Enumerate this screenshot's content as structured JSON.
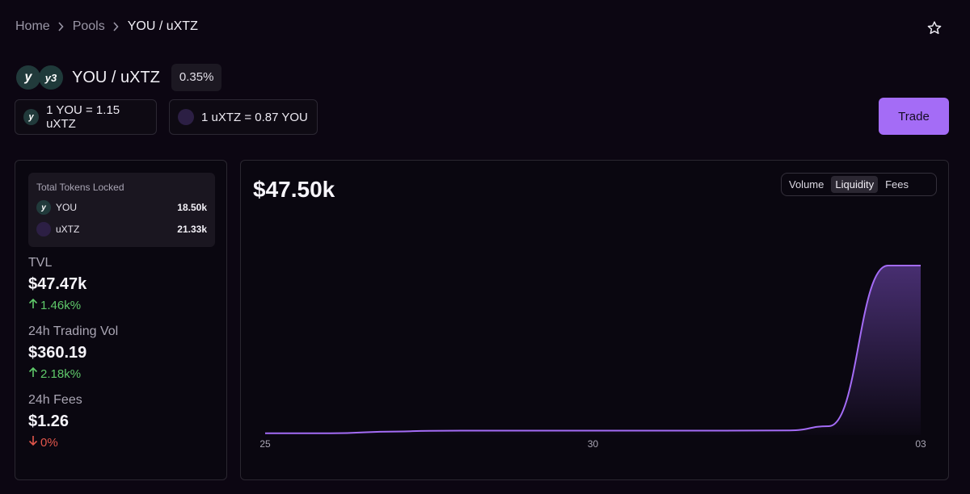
{
  "breadcrumb": {
    "home": "Home",
    "pools": "Pools",
    "current": "YOU / uXTZ"
  },
  "pair": {
    "title": "YOU / uXTZ",
    "fee": "0.35%",
    "logo1": "y",
    "logo2": "y3"
  },
  "rates": {
    "rate1": "1 YOU = 1.15 uXTZ",
    "rate2": "1 uXTZ = 0.87 YOU"
  },
  "trade_label": "Trade",
  "locked": {
    "title": "Total Tokens Locked",
    "tokens": [
      {
        "symbol": "YOU",
        "amount": "18.50k"
      },
      {
        "symbol": "uXTZ",
        "amount": "21.33k"
      }
    ]
  },
  "stats": {
    "tvl": {
      "label": "TVL",
      "value": "$47.47k",
      "change": "1.46k%",
      "direction": "up"
    },
    "volume": {
      "label": "24h Trading Vol",
      "value": "$360.19",
      "change": "2.18k%",
      "direction": "up"
    },
    "fees": {
      "label": "24h Fees",
      "value": "$1.26",
      "change": "0%",
      "direction": "down"
    }
  },
  "chart_header": {
    "value": "$47.50k"
  },
  "tabs": [
    "Volume",
    "Liquidity",
    "Fees"
  ],
  "active_tab": "Liquidity",
  "icons": {
    "star": "star-icon",
    "chevron": "chevron-right-icon",
    "up": "arrow-up-icon",
    "down": "arrow-down-icon"
  },
  "colors": {
    "accent": "#a46cf6",
    "positive": "#5fc96a",
    "negative": "#e2564b",
    "background": "#0c0612"
  },
  "chart_data": {
    "type": "area",
    "x_tick_labels": [
      "25",
      "30",
      "03"
    ],
    "x": [
      0,
      1,
      2,
      2.5,
      3,
      4,
      5,
      6,
      7,
      8,
      8.6,
      9.5,
      10
    ],
    "values": [
      0.5,
      0.5,
      1.0,
      1.2,
      1.25,
      1.25,
      1.25,
      1.25,
      1.25,
      1.3,
      2.5,
      47.5,
      47.5
    ],
    "ylim": [
      0,
      57
    ],
    "grid": false,
    "legend": "none"
  }
}
